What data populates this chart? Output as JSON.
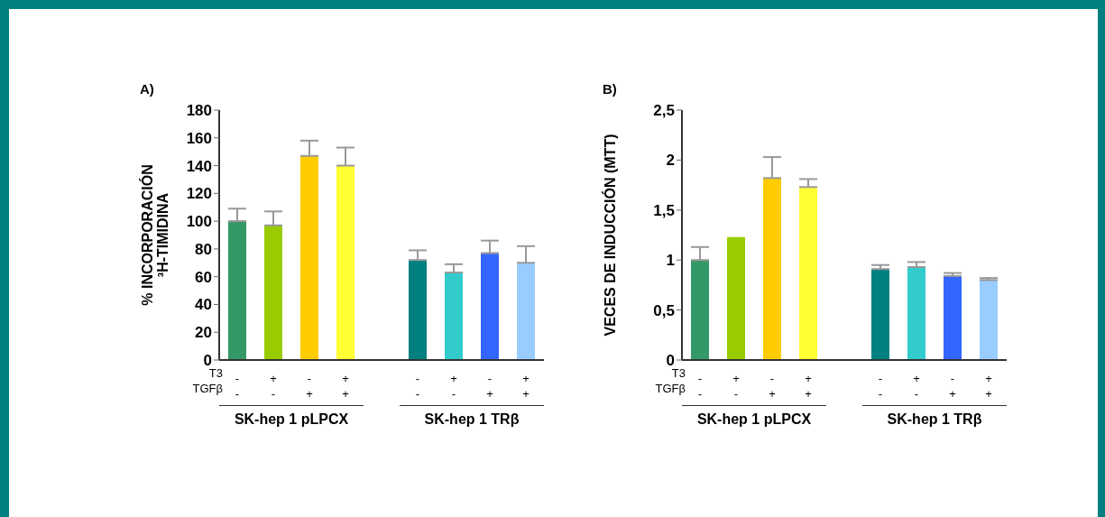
{
  "chart_data": [
    {
      "type": "bar",
      "title": "A)",
      "ylabel": "% INCORPORACIÓN\n³H-TIMIDINA",
      "categories": [
        "-\n-",
        "+\n-",
        "-\n+",
        "+\n+",
        null,
        "-\n-",
        "+\n-",
        "-\n+",
        "+\n+"
      ],
      "values": [
        100,
        97,
        147,
        140,
        null,
        72,
        63,
        77,
        70
      ],
      "errors": [
        [
          100,
          109
        ],
        [
          97,
          107
        ],
        [
          147,
          158
        ],
        [
          140,
          153
        ],
        null,
        [
          72,
          79
        ],
        [
          63,
          69
        ],
        [
          77,
          86
        ],
        [
          70,
          82
        ]
      ],
      "colors": [
        "#339966",
        "#99cc00",
        "#ffcc00",
        "#ffff33",
        "#cccccc",
        "#008080",
        "#33cccc",
        "#3366ff",
        "#99ccff"
      ],
      "ylim": [
        0,
        180
      ],
      "yticks": [
        0,
        20,
        40,
        60,
        80,
        100,
        120,
        140,
        160,
        180
      ],
      "annotations": [
        "T3",
        "TGFβ",
        "SK-hep 1 pLPCX",
        "SK-hep 1 TRβ"
      ]
    },
    {
      "type": "bar",
      "title": "B)",
      "ylabel": "VECES DE INDUCCIÓN (MTT)",
      "categories": [
        "-\n-",
        "+\n-",
        "-\n+",
        "+\n+",
        null,
        "-\n-",
        "+\n-",
        "-\n+",
        "+\n+"
      ],
      "values": [
        1.0,
        1.23,
        1.82,
        1.73,
        null,
        0.91,
        0.93,
        0.84,
        0.8
      ],
      "errors": [
        [
          1.0,
          1.13
        ],
        null,
        [
          1.82,
          2.03
        ],
        [
          1.73,
          1.81
        ],
        null,
        [
          0.91,
          0.95
        ],
        [
          0.93,
          0.98
        ],
        [
          0.84,
          0.87
        ],
        [
          0.8,
          0.82
        ]
      ],
      "colors": [
        "#339966",
        "#99cc00",
        "#ffcc00",
        "#ffff33",
        "#cccccc",
        "#008080",
        "#33cccc",
        "#3366ff",
        "#99ccff"
      ],
      "ylim": [
        0,
        2.5
      ],
      "yticks": [
        0,
        {
          "value": 0.5,
          "label": "0,5"
        },
        1,
        {
          "value": 1.5,
          "label": "1,5"
        },
        2,
        {
          "value": 2.5,
          "label": "2,5"
        }
      ],
      "annotations": [
        "T3",
        "TGFβ",
        "SK-hep 1 pLPCX",
        "SK-hep 1 TRβ"
      ]
    }
  ]
}
